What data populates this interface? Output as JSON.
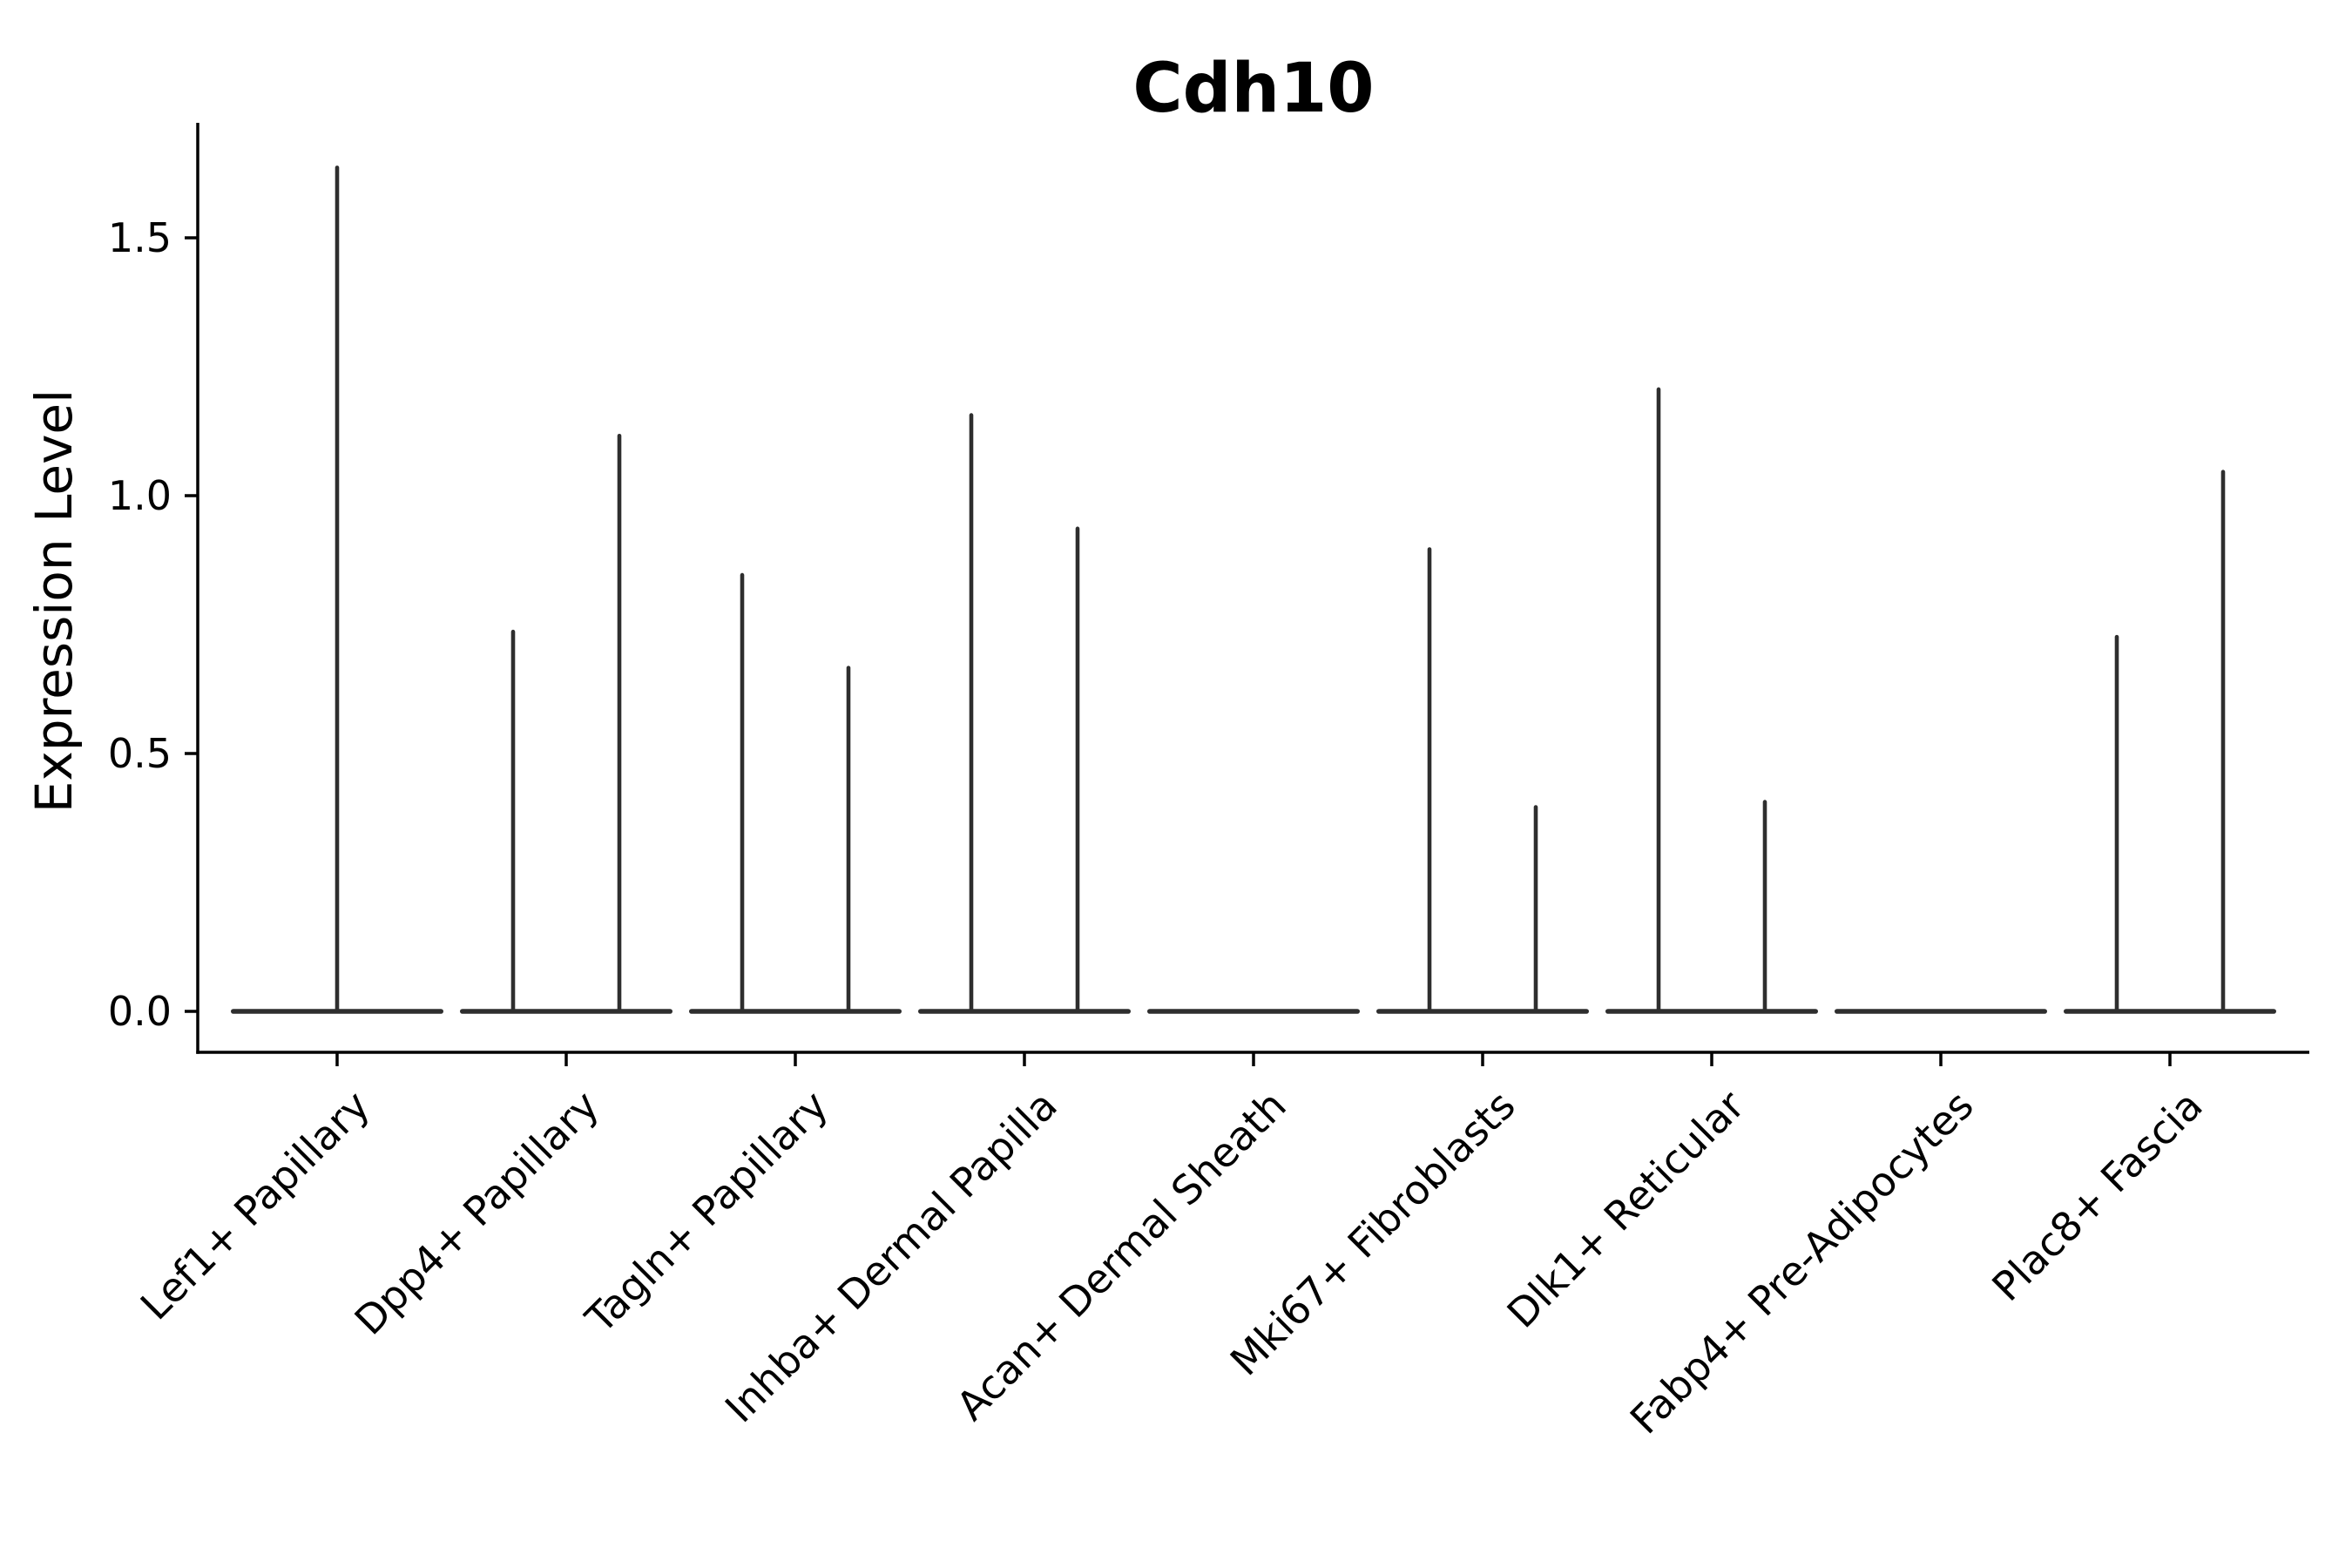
{
  "chart_data": {
    "type": "violin",
    "title": "Cdh10",
    "ylabel": "Expression Level",
    "xlabel": "",
    "ytick_labels": [
      "0.0",
      "0.5",
      "1.0",
      "1.5"
    ],
    "ytick_values": [
      0.0,
      0.5,
      1.0,
      1.5
    ],
    "ylim": [
      -0.08,
      1.72
    ],
    "grid": false,
    "legend": null,
    "categories": [
      "Lef1+ Papillary",
      "Dpp4+ Papillary",
      "Tagln+ Papillary",
      "Inhba+ Dermal Papilla",
      "Acan+ Dermal Sheath",
      "Mki67+ Fibroblasts",
      "Dlk1+ Reticular",
      "Fabp4+ Pre-Adipocytes",
      "Plac8+ Fascia"
    ],
    "groups": [
      {
        "category": "Lef1+ Papillary",
        "violin_maxima": [
          1.64
        ]
      },
      {
        "category": "Dpp4+ Papillary",
        "violin_maxima": [
          0.74,
          1.12
        ]
      },
      {
        "category": "Tagln+ Papillary",
        "violin_maxima": [
          0.85,
          0.67
        ]
      },
      {
        "category": "Inhba+ Dermal Papilla",
        "violin_maxima": [
          1.16,
          0.94
        ]
      },
      {
        "category": "Acan+ Dermal Sheath",
        "violin_maxima": [
          0.0
        ]
      },
      {
        "category": "Mki67+ Fibroblasts",
        "violin_maxima": [
          0.9,
          0.4
        ]
      },
      {
        "category": "Dlk1+ Reticular",
        "violin_maxima": [
          1.21,
          0.41
        ]
      },
      {
        "category": "Fabp4+ Pre-Adipocytes",
        "violin_maxima": [
          0.0
        ]
      },
      {
        "category": "Plac8+ Fascia",
        "violin_maxima": [
          0.73,
          1.05
        ]
      }
    ],
    "colors": {
      "violin": "#2e2e2e",
      "axis": "#000000",
      "text": "#000000",
      "background": "#ffffff"
    }
  }
}
